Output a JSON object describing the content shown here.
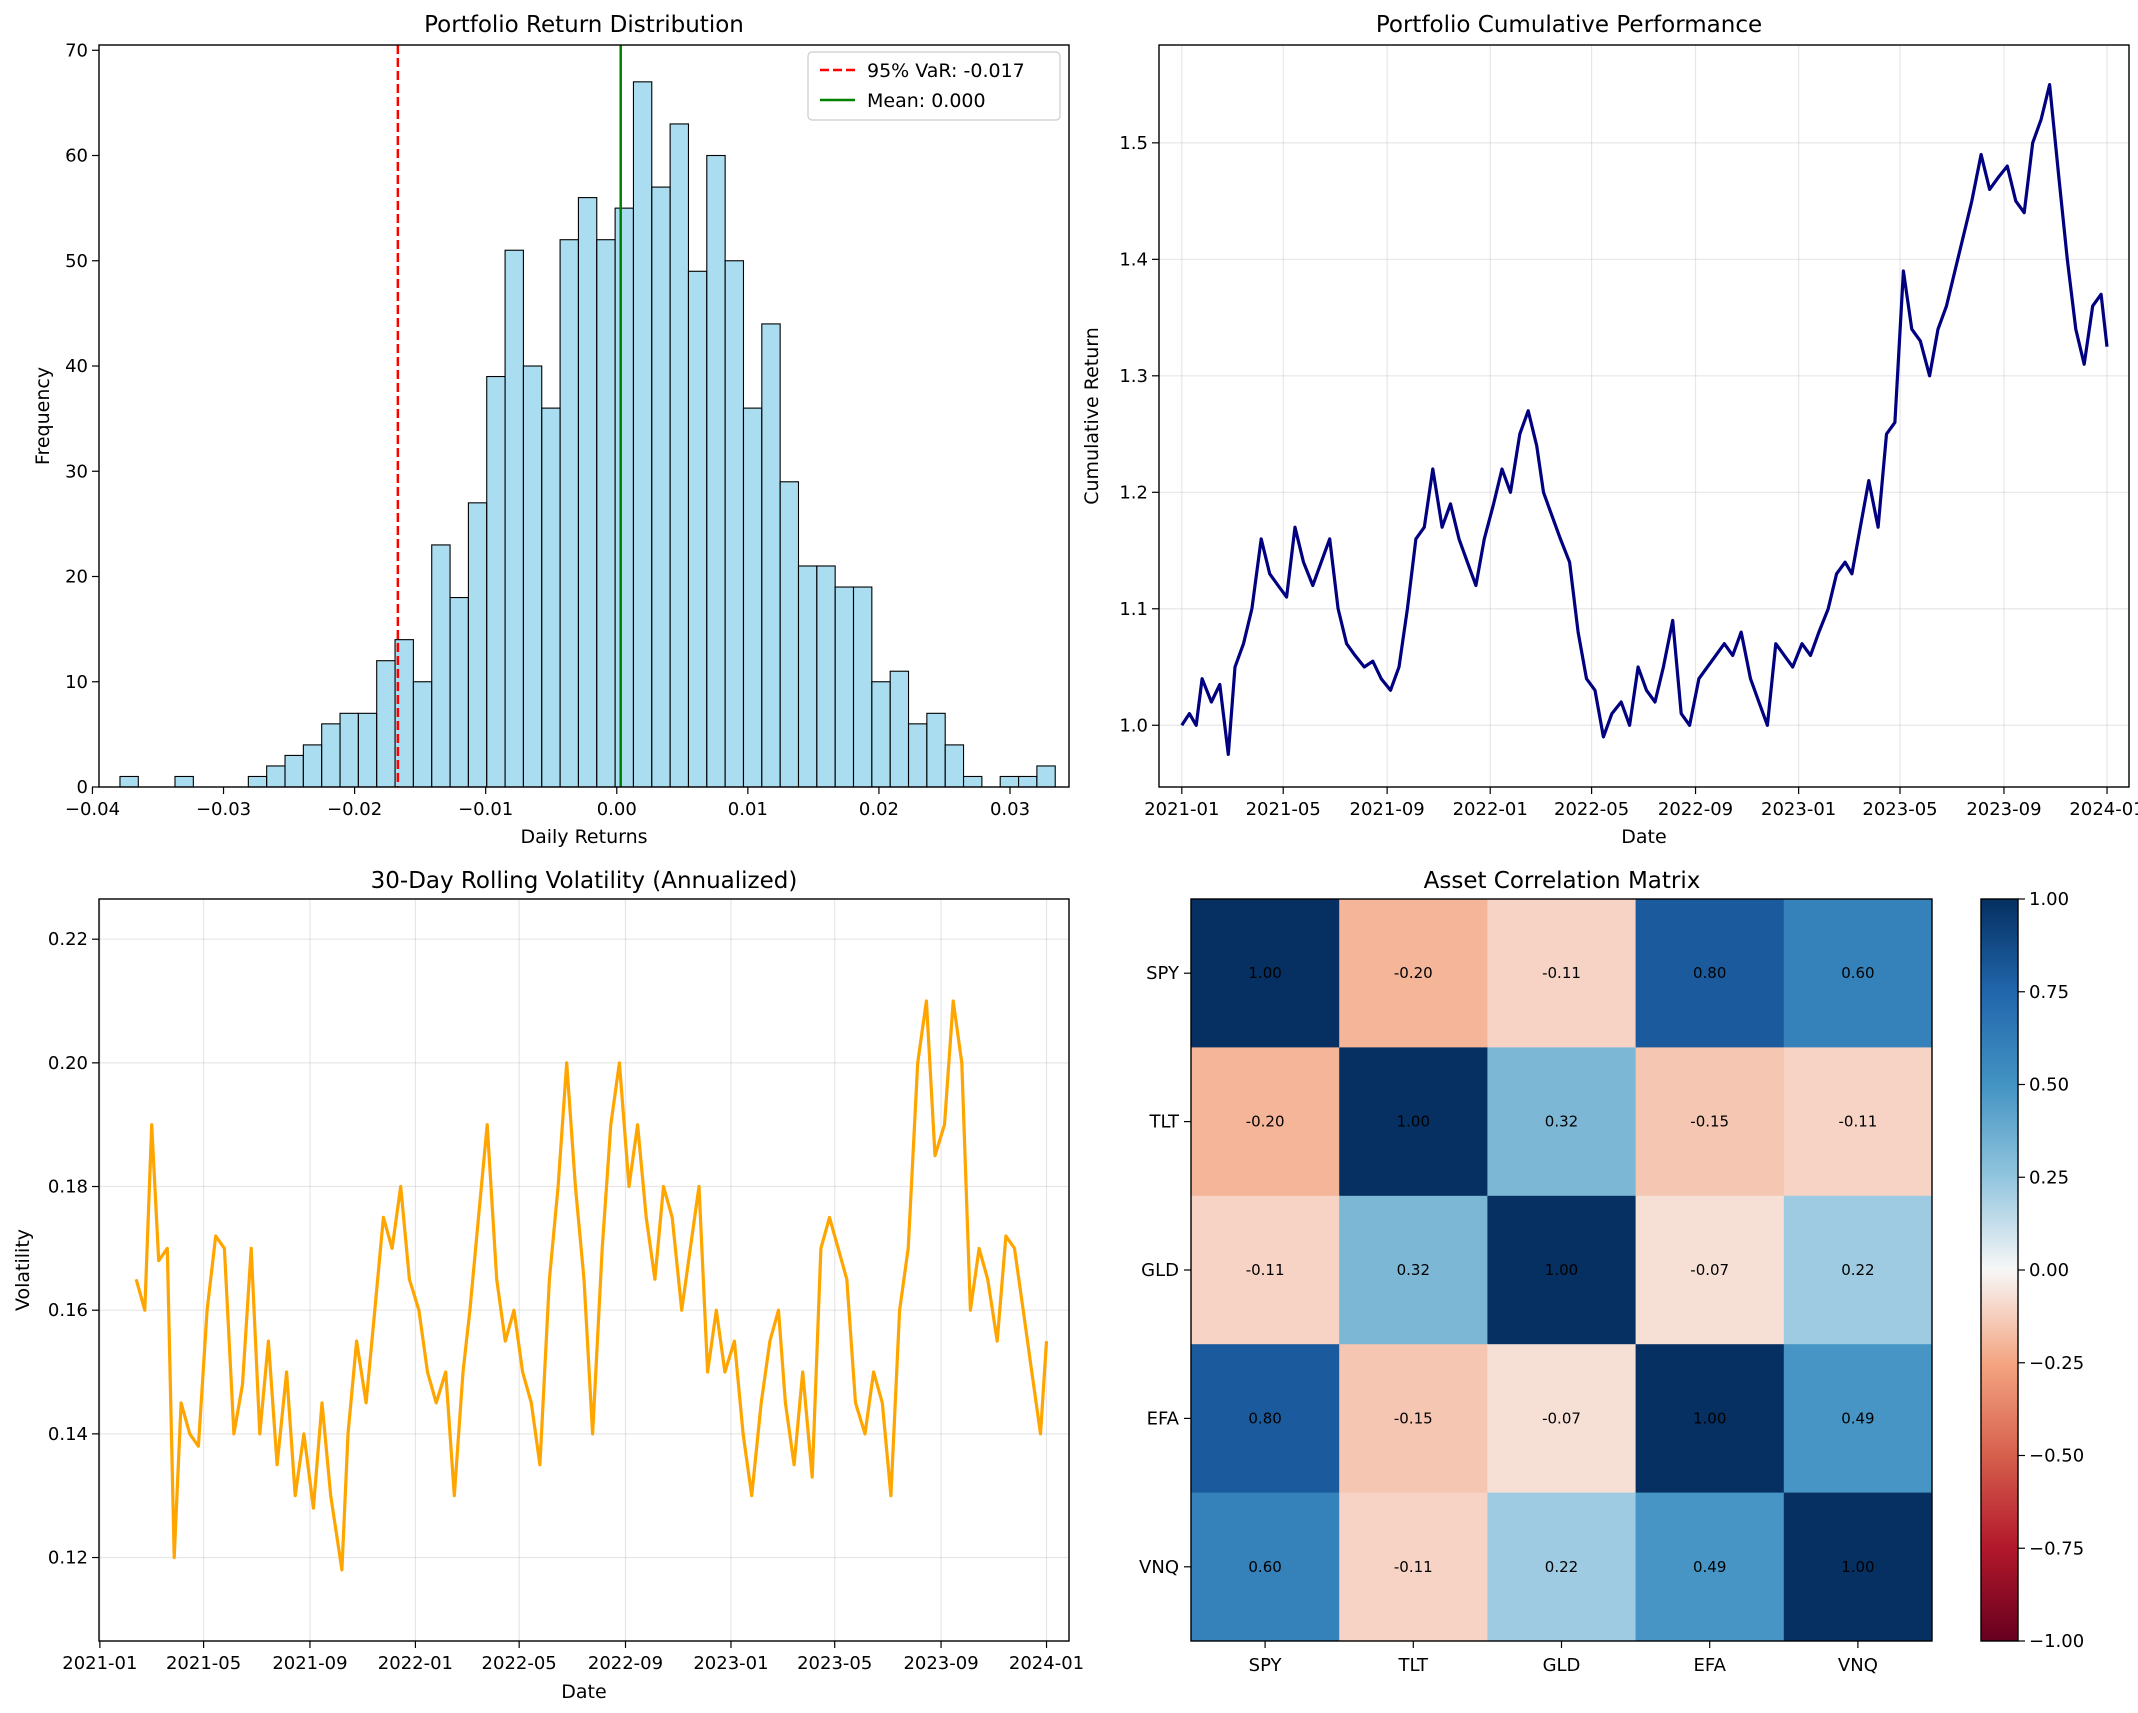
{
  "chart_data": [
    {
      "id": "hist",
      "type": "bar",
      "title": "Portfolio Return Distribution",
      "xlabel": "Daily Returns",
      "ylabel": "Frequency",
      "xlim": [
        -0.0395,
        0.0345
      ],
      "ylim": [
        0,
        70.5
      ],
      "xticks": [
        -0.04,
        -0.03,
        -0.02,
        -0.01,
        0.0,
        0.01,
        0.02,
        0.03
      ],
      "xtick_labels": [
        "−0.04",
        "−0.03",
        "−0.02",
        "−0.01",
        "0.00",
        "0.01",
        "0.02",
        "0.03"
      ],
      "yticks": [
        0,
        10,
        20,
        30,
        40,
        50,
        60,
        70
      ],
      "bin_start": -0.0379,
      "bin_width": 0.001399,
      "counts": [
        1,
        0,
        0,
        1,
        0,
        0,
        0,
        1,
        2,
        3,
        4,
        6,
        7,
        7,
        12,
        14,
        10,
        23,
        18,
        27,
        39,
        51,
        40,
        36,
        52,
        56,
        52,
        55,
        67,
        57,
        63,
        49,
        60,
        50,
        36,
        44,
        29,
        21,
        21,
        19,
        19,
        10,
        11,
        6,
        7,
        4,
        1,
        0,
        1,
        1,
        2
      ],
      "bar_color": "#87ceeb",
      "grid": false,
      "legend_position": "upper right",
      "vlines": [
        {
          "x": -0.0167,
          "label": "95% VaR: -0.017",
          "color": "#ff0000",
          "style": "dashed"
        },
        {
          "x": 0.0003,
          "label": "Mean: 0.000",
          "color": "#008000",
          "style": "solid"
        }
      ]
    },
    {
      "id": "cum",
      "type": "line",
      "title": "Portfolio Cumulative Performance",
      "xlabel": "Date",
      "ylabel": "Cumulative Return",
      "xlim": [
        "2020-12-05",
        "2024-01-27"
      ],
      "ylim": [
        0.947,
        1.584
      ],
      "xticks": [
        "2021-01-01",
        "2021-05-01",
        "2021-09-01",
        "2022-01-01",
        "2022-05-01",
        "2022-09-01",
        "2023-01-01",
        "2023-05-01",
        "2023-09-01",
        "2024-01-01"
      ],
      "xtick_labels": [
        "2021-01",
        "2021-05",
        "2021-09",
        "2022-01",
        "2022-05",
        "2022-09",
        "2023-01",
        "2023-05",
        "2023-09",
        "2024-01"
      ],
      "yticks": [
        1.0,
        1.1,
        1.2,
        1.3,
        1.4,
        1.5
      ],
      "ytick_labels": [
        "1.0",
        "1.1",
        "1.2",
        "1.3",
        "1.4",
        "1.5"
      ],
      "color": "#000080",
      "grid": true,
      "points": [
        [
          "2021-01-01",
          1.0
        ],
        [
          "2021-01-10",
          1.01
        ],
        [
          "2021-01-18",
          1.0
        ],
        [
          "2021-01-25",
          1.04
        ],
        [
          "2021-02-05",
          1.02
        ],
        [
          "2021-02-15",
          1.035
        ],
        [
          "2021-02-25",
          0.975
        ],
        [
          "2021-03-05",
          1.05
        ],
        [
          "2021-03-15",
          1.07
        ],
        [
          "2021-03-25",
          1.1
        ],
        [
          "2021-04-05",
          1.16
        ],
        [
          "2021-04-15",
          1.13
        ],
        [
          "2021-04-25",
          1.12
        ],
        [
          "2021-05-05",
          1.11
        ],
        [
          "2021-05-15",
          1.17
        ],
        [
          "2021-05-25",
          1.14
        ],
        [
          "2021-06-05",
          1.12
        ],
        [
          "2021-06-15",
          1.14
        ],
        [
          "2021-06-25",
          1.16
        ],
        [
          "2021-07-05",
          1.1
        ],
        [
          "2021-07-15",
          1.07
        ],
        [
          "2021-07-25",
          1.06
        ],
        [
          "2021-08-05",
          1.05
        ],
        [
          "2021-08-15",
          1.055
        ],
        [
          "2021-08-25",
          1.04
        ],
        [
          "2021-09-05",
          1.03
        ],
        [
          "2021-09-15",
          1.05
        ],
        [
          "2021-09-25",
          1.1
        ],
        [
          "2021-10-05",
          1.16
        ],
        [
          "2021-10-15",
          1.17
        ],
        [
          "2021-10-25",
          1.22
        ],
        [
          "2021-11-05",
          1.17
        ],
        [
          "2021-11-15",
          1.19
        ],
        [
          "2021-11-25",
          1.16
        ],
        [
          "2021-12-05",
          1.14
        ],
        [
          "2021-12-15",
          1.12
        ],
        [
          "2021-12-25",
          1.16
        ],
        [
          "2022-01-05",
          1.19
        ],
        [
          "2022-01-15",
          1.22
        ],
        [
          "2022-01-25",
          1.2
        ],
        [
          "2022-02-05",
          1.25
        ],
        [
          "2022-02-15",
          1.27
        ],
        [
          "2022-02-25",
          1.24
        ],
        [
          "2022-03-05",
          1.2
        ],
        [
          "2022-03-15",
          1.18
        ],
        [
          "2022-03-25",
          1.16
        ],
        [
          "2022-04-05",
          1.14
        ],
        [
          "2022-04-15",
          1.08
        ],
        [
          "2022-04-25",
          1.04
        ],
        [
          "2022-05-05",
          1.03
        ],
        [
          "2022-05-15",
          0.99
        ],
        [
          "2022-05-25",
          1.01
        ],
        [
          "2022-06-05",
          1.02
        ],
        [
          "2022-06-15",
          1.0
        ],
        [
          "2022-06-25",
          1.05
        ],
        [
          "2022-07-05",
          1.03
        ],
        [
          "2022-07-15",
          1.02
        ],
        [
          "2022-07-25",
          1.05
        ],
        [
          "2022-08-05",
          1.09
        ],
        [
          "2022-08-15",
          1.01
        ],
        [
          "2022-08-25",
          1.0
        ],
        [
          "2022-09-05",
          1.04
        ],
        [
          "2022-09-15",
          1.05
        ],
        [
          "2022-09-25",
          1.06
        ],
        [
          "2022-10-05",
          1.07
        ],
        [
          "2022-10-15",
          1.06
        ],
        [
          "2022-10-25",
          1.08
        ],
        [
          "2022-11-05",
          1.04
        ],
        [
          "2022-11-15",
          1.02
        ],
        [
          "2022-11-25",
          1.0
        ],
        [
          "2022-12-05",
          1.07
        ],
        [
          "2022-12-15",
          1.06
        ],
        [
          "2022-12-25",
          1.05
        ],
        [
          "2023-01-05",
          1.07
        ],
        [
          "2023-01-15",
          1.06
        ],
        [
          "2023-01-25",
          1.08
        ],
        [
          "2023-02-05",
          1.1
        ],
        [
          "2023-02-15",
          1.13
        ],
        [
          "2023-02-25",
          1.14
        ],
        [
          "2023-03-05",
          1.13
        ],
        [
          "2023-03-15",
          1.17
        ],
        [
          "2023-03-25",
          1.21
        ],
        [
          "2023-04-05",
          1.17
        ],
        [
          "2023-04-15",
          1.25
        ],
        [
          "2023-04-25",
          1.26
        ],
        [
          "2023-05-05",
          1.39
        ],
        [
          "2023-05-15",
          1.34
        ],
        [
          "2023-05-25",
          1.33
        ],
        [
          "2023-06-05",
          1.3
        ],
        [
          "2023-06-15",
          1.34
        ],
        [
          "2023-06-25",
          1.36
        ],
        [
          "2023-07-05",
          1.39
        ],
        [
          "2023-07-15",
          1.42
        ],
        [
          "2023-07-25",
          1.45
        ],
        [
          "2023-08-05",
          1.49
        ],
        [
          "2023-08-15",
          1.46
        ],
        [
          "2023-08-25",
          1.47
        ],
        [
          "2023-09-05",
          1.48
        ],
        [
          "2023-09-15",
          1.45
        ],
        [
          "2023-09-25",
          1.44
        ],
        [
          "2023-10-05",
          1.5
        ],
        [
          "2023-10-15",
          1.52
        ],
        [
          "2023-10-25",
          1.55
        ],
        [
          "2023-11-05",
          1.47
        ],
        [
          "2023-11-15",
          1.4
        ],
        [
          "2023-11-25",
          1.34
        ],
        [
          "2023-12-05",
          1.31
        ],
        [
          "2023-12-15",
          1.36
        ],
        [
          "2023-12-25",
          1.37
        ],
        [
          "2024-01-01",
          1.325
        ]
      ]
    },
    {
      "id": "vol",
      "type": "line",
      "title": "30-Day Rolling Volatility (Annualized)",
      "xlabel": "Date",
      "ylabel": "Volatility",
      "xlim": [
        "2020-12-31",
        "2024-01-27"
      ],
      "ylim": [
        0.1065,
        0.2265
      ],
      "xticks": [
        "2021-01-01",
        "2021-05-01",
        "2021-09-01",
        "2022-01-01",
        "2022-05-01",
        "2022-09-01",
        "2023-01-01",
        "2023-05-01",
        "2023-09-01",
        "2024-01-01"
      ],
      "xtick_labels": [
        "2021-01",
        "2021-05",
        "2021-09",
        "2022-01",
        "2022-05",
        "2022-09",
        "2023-01",
        "2023-05",
        "2023-09",
        "2024-01"
      ],
      "yticks": [
        0.12,
        0.14,
        0.16,
        0.18,
        0.2,
        0.22
      ],
      "ytick_labels": [
        "0.12",
        "0.14",
        "0.16",
        "0.18",
        "0.20",
        "0.22"
      ],
      "color": "#ffa500",
      "grid": true,
      "points": [
        [
          "2021-02-12",
          0.165
        ],
        [
          "2021-02-22",
          0.16
        ],
        [
          "2021-03-02",
          0.19
        ],
        [
          "2021-03-10",
          0.168
        ],
        [
          "2021-03-20",
          0.17
        ],
        [
          "2021-03-28",
          0.12
        ],
        [
          "2021-04-05",
          0.145
        ],
        [
          "2021-04-15",
          0.14
        ],
        [
          "2021-04-25",
          0.138
        ],
        [
          "2021-05-05",
          0.16
        ],
        [
          "2021-05-15",
          0.172
        ],
        [
          "2021-05-25",
          0.17
        ],
        [
          "2021-06-05",
          0.14
        ],
        [
          "2021-06-15",
          0.148
        ],
        [
          "2021-06-25",
          0.17
        ],
        [
          "2021-07-05",
          0.14
        ],
        [
          "2021-07-15",
          0.155
        ],
        [
          "2021-07-25",
          0.135
        ],
        [
          "2021-08-05",
          0.15
        ],
        [
          "2021-08-15",
          0.13
        ],
        [
          "2021-08-25",
          0.14
        ],
        [
          "2021-09-05",
          0.128
        ],
        [
          "2021-09-15",
          0.145
        ],
        [
          "2021-09-25",
          0.13
        ],
        [
          "2021-10-08",
          0.118
        ],
        [
          "2021-10-15",
          0.14
        ],
        [
          "2021-10-25",
          0.155
        ],
        [
          "2021-11-05",
          0.145
        ],
        [
          "2021-11-15",
          0.16
        ],
        [
          "2021-11-25",
          0.175
        ],
        [
          "2021-12-05",
          0.17
        ],
        [
          "2021-12-15",
          0.18
        ],
        [
          "2021-12-25",
          0.165
        ],
        [
          "2022-01-05",
          0.16
        ],
        [
          "2022-01-15",
          0.15
        ],
        [
          "2022-01-25",
          0.145
        ],
        [
          "2022-02-05",
          0.15
        ],
        [
          "2022-02-15",
          0.13
        ],
        [
          "2022-02-25",
          0.15
        ],
        [
          "2022-03-05",
          0.16
        ],
        [
          "2022-03-15",
          0.175
        ],
        [
          "2022-03-25",
          0.19
        ],
        [
          "2022-04-05",
          0.165
        ],
        [
          "2022-04-15",
          0.155
        ],
        [
          "2022-04-25",
          0.16
        ],
        [
          "2022-05-05",
          0.15
        ],
        [
          "2022-05-15",
          0.145
        ],
        [
          "2022-05-25",
          0.135
        ],
        [
          "2022-06-05",
          0.165
        ],
        [
          "2022-06-15",
          0.18
        ],
        [
          "2022-06-25",
          0.2
        ],
        [
          "2022-07-05",
          0.18
        ],
        [
          "2022-07-15",
          0.165
        ],
        [
          "2022-07-25",
          0.14
        ],
        [
          "2022-08-05",
          0.17
        ],
        [
          "2022-08-15",
          0.19
        ],
        [
          "2022-08-25",
          0.2
        ],
        [
          "2022-09-05",
          0.18
        ],
        [
          "2022-09-15",
          0.19
        ],
        [
          "2022-09-25",
          0.175
        ],
        [
          "2022-10-05",
          0.165
        ],
        [
          "2022-10-15",
          0.18
        ],
        [
          "2022-10-25",
          0.175
        ],
        [
          "2022-11-05",
          0.16
        ],
        [
          "2022-11-15",
          0.17
        ],
        [
          "2022-11-25",
          0.18
        ],
        [
          "2022-12-05",
          0.15
        ],
        [
          "2022-12-15",
          0.16
        ],
        [
          "2022-12-25",
          0.15
        ],
        [
          "2023-01-05",
          0.155
        ],
        [
          "2023-01-15",
          0.14
        ],
        [
          "2023-01-25",
          0.13
        ],
        [
          "2023-02-05",
          0.145
        ],
        [
          "2023-02-15",
          0.155
        ],
        [
          "2023-02-25",
          0.16
        ],
        [
          "2023-03-05",
          0.145
        ],
        [
          "2023-03-15",
          0.135
        ],
        [
          "2023-03-25",
          0.15
        ],
        [
          "2023-04-05",
          0.133
        ],
        [
          "2023-04-15",
          0.17
        ],
        [
          "2023-04-25",
          0.175
        ],
        [
          "2023-05-05",
          0.17
        ],
        [
          "2023-05-15",
          0.165
        ],
        [
          "2023-05-25",
          0.145
        ],
        [
          "2023-06-05",
          0.14
        ],
        [
          "2023-06-15",
          0.15
        ],
        [
          "2023-06-25",
          0.145
        ],
        [
          "2023-07-05",
          0.13
        ],
        [
          "2023-07-15",
          0.16
        ],
        [
          "2023-07-25",
          0.17
        ],
        [
          "2023-08-05",
          0.2
        ],
        [
          "2023-08-15",
          0.21
        ],
        [
          "2023-08-25",
          0.185
        ],
        [
          "2023-09-05",
          0.19
        ],
        [
          "2023-09-15",
          0.21
        ],
        [
          "2023-09-25",
          0.2
        ],
        [
          "2023-10-05",
          0.16
        ],
        [
          "2023-10-15",
          0.17
        ],
        [
          "2023-10-25",
          0.165
        ],
        [
          "2023-11-05",
          0.155
        ],
        [
          "2023-11-15",
          0.172
        ],
        [
          "2023-11-25",
          0.17
        ],
        [
          "2023-12-05",
          0.16
        ],
        [
          "2023-12-15",
          0.15
        ],
        [
          "2023-12-25",
          0.14
        ],
        [
          "2024-01-01",
          0.155
        ]
      ]
    },
    {
      "id": "corr",
      "type": "heatmap",
      "title": "Asset Correlation Matrix",
      "labels": [
        "SPY",
        "TLT",
        "GLD",
        "EFA",
        "VNQ"
      ],
      "matrix": [
        [
          1.0,
          -0.2,
          -0.11,
          0.8,
          0.6
        ],
        [
          -0.2,
          1.0,
          0.32,
          -0.15,
          -0.11
        ],
        [
          -0.11,
          0.32,
          1.0,
          -0.07,
          0.22
        ],
        [
          0.8,
          -0.15,
          -0.07,
          1.0,
          0.49
        ],
        [
          0.6,
          -0.11,
          0.22,
          0.49,
          1.0
        ]
      ],
      "cell_labels": [
        [
          "1.00",
          "-0.20",
          "-0.11",
          "0.80",
          "0.60"
        ],
        [
          "-0.20",
          "1.00",
          "0.32",
          "-0.15",
          "-0.11"
        ],
        [
          "-0.11",
          "0.32",
          "1.00",
          "-0.07",
          "0.22"
        ],
        [
          "0.80",
          "-0.15",
          "-0.07",
          "1.00",
          "0.49"
        ],
        [
          "0.60",
          "-0.11",
          "0.22",
          "0.49",
          "1.00"
        ]
      ],
      "colormap": "RdBu",
      "vmin": -1.0,
      "vmax": 1.0,
      "colorbar_ticks": [
        1.0,
        0.75,
        0.5,
        0.25,
        0.0,
        -0.25,
        -0.5,
        -0.75,
        -1.0
      ],
      "colorbar_tick_labels": [
        "1.00",
        "0.75",
        "0.50",
        "0.25",
        "0.00",
        "−0.25",
        "−0.50",
        "−0.75",
        "−1.00"
      ]
    }
  ]
}
